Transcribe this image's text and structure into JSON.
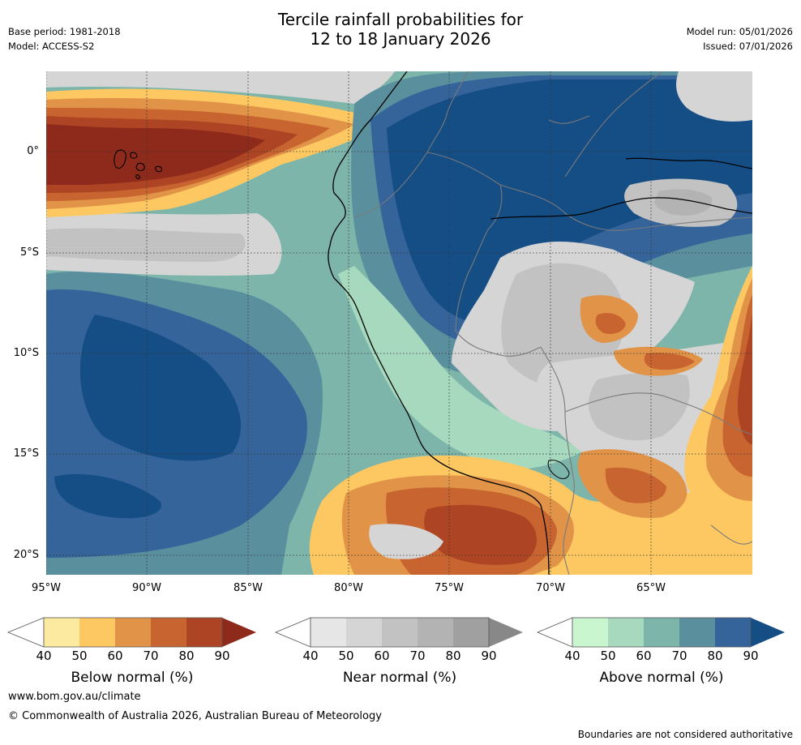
{
  "header": {
    "title_line1": "Tercile rainfall probabilities for",
    "title_line2": "12 to 18 January 2026",
    "base_period": "Base period: 1981-2018",
    "model": "Model: ACCESS-S2",
    "model_run": "Model run: 05/01/2026",
    "issued": "Issued: 07/01/2026"
  },
  "map": {
    "lat_labels": [
      "0°",
      "5°S",
      "10°S",
      "15°S",
      "20°S"
    ],
    "lon_labels": [
      "95°W",
      "90°W",
      "85°W",
      "80°W",
      "75°W",
      "70°W",
      "65°W"
    ],
    "colors": {
      "below": [
        "#fdeaa1",
        "#fdc862",
        "#e19448",
        "#c8642f",
        "#ad4423",
        "#8e2a1c"
      ],
      "near": [
        "#e6e6e6",
        "#d5d5d5",
        "#c2c2c2",
        "#b3b3b3",
        "#a0a0a0",
        "#888888"
      ],
      "above": [
        "#c9f6cf",
        "#a6d9bd",
        "#7eb5ab",
        "#5a8f9e",
        "#34649a",
        "#154d85"
      ]
    }
  },
  "legend": {
    "ticks": [
      "40",
      "50",
      "60",
      "70",
      "80",
      "90"
    ],
    "below_title": "Below normal (%)",
    "near_title": "Near normal (%)",
    "above_title": "Above normal (%)"
  },
  "footer": {
    "url": "www.bom.gov.au/climate",
    "copyright": "© Commonwealth of Australia 2026, Australian Bureau of Meteorology",
    "disclaimer": "Boundaries are not considered authoritative"
  }
}
